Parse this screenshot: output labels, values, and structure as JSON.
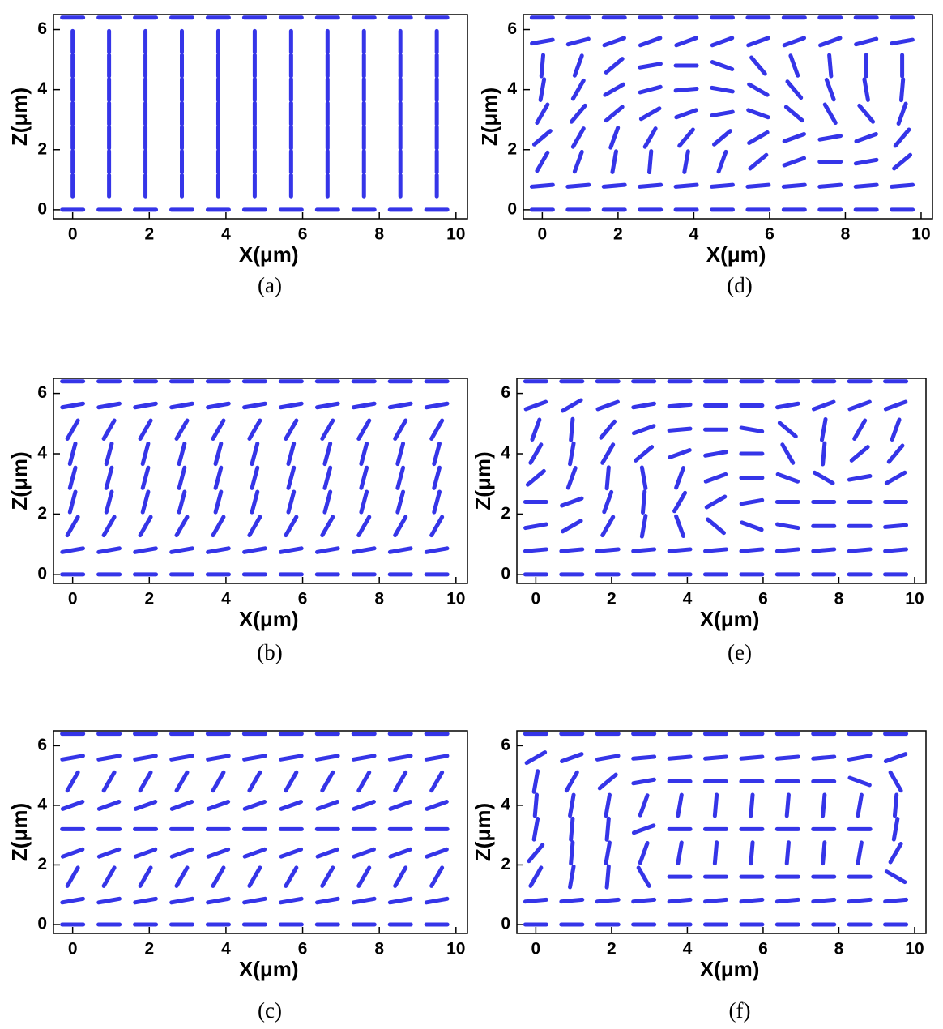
{
  "chart_data": [
    {
      "type": "director",
      "caption": "(a)",
      "xlabel": "X(μm)",
      "ylabel": "Z(μm)",
      "color": "#3535e8",
      "xlim": [
        -0.5,
        10.3
      ],
      "ylim": [
        -0.3,
        6.5
      ],
      "xticks": [
        0,
        2,
        4,
        6,
        8,
        10
      ],
      "yticks": [
        0,
        2,
        4,
        6
      ],
      "x": [
        0,
        0.95,
        1.9,
        2.85,
        3.8,
        4.75,
        5.7,
        6.65,
        7.6,
        8.55,
        9.5
      ],
      "z": [
        0,
        0.8,
        1.6,
        2.4,
        3.2,
        4.0,
        4.8,
        5.6,
        6.4
      ],
      "angles": [
        [
          0,
          0,
          0,
          0,
          0,
          0,
          0,
          0,
          0,
          0,
          0
        ],
        [
          90,
          90,
          90,
          90,
          90,
          90,
          90,
          90,
          90,
          90,
          90
        ],
        [
          90,
          90,
          90,
          90,
          90,
          90,
          90,
          90,
          90,
          90,
          90
        ],
        [
          90,
          90,
          90,
          90,
          90,
          90,
          90,
          90,
          90,
          90,
          90
        ],
        [
          90,
          90,
          90,
          90,
          90,
          90,
          90,
          90,
          90,
          90,
          90
        ],
        [
          90,
          90,
          90,
          90,
          90,
          90,
          90,
          90,
          90,
          90,
          90
        ],
        [
          90,
          90,
          90,
          90,
          90,
          90,
          90,
          90,
          90,
          90,
          90
        ],
        [
          90,
          90,
          90,
          90,
          90,
          90,
          90,
          90,
          90,
          90,
          90
        ],
        [
          0,
          0,
          0,
          0,
          0,
          0,
          0,
          0,
          0,
          0,
          0
        ]
      ]
    },
    {
      "type": "director",
      "caption": "(b)",
      "xlabel": "X(μm)",
      "ylabel": "Z(μm)",
      "color": "#3535e8",
      "xlim": [
        -0.5,
        10.3
      ],
      "ylim": [
        -0.3,
        6.5
      ],
      "xticks": [
        0,
        2,
        4,
        6,
        8,
        10
      ],
      "yticks": [
        0,
        2,
        4,
        6
      ],
      "x": [
        0,
        0.95,
        1.9,
        2.85,
        3.8,
        4.75,
        5.7,
        6.65,
        7.6,
        8.55,
        9.5
      ],
      "z": [
        0,
        0.8,
        1.6,
        2.4,
        3.2,
        4.0,
        4.8,
        5.6,
        6.4
      ],
      "angles": [
        [
          0,
          0,
          0,
          0,
          0,
          0,
          0,
          0,
          0,
          0,
          0
        ],
        [
          10,
          10,
          10,
          10,
          10,
          10,
          10,
          10,
          10,
          10,
          10
        ],
        [
          60,
          60,
          60,
          60,
          60,
          60,
          60,
          60,
          60,
          60,
          60
        ],
        [
          75,
          75,
          75,
          75,
          75,
          75,
          75,
          75,
          75,
          75,
          75
        ],
        [
          75,
          75,
          75,
          75,
          75,
          75,
          75,
          75,
          75,
          75,
          75
        ],
        [
          75,
          75,
          75,
          75,
          75,
          75,
          75,
          75,
          75,
          75,
          75
        ],
        [
          60,
          60,
          60,
          60,
          60,
          60,
          60,
          60,
          60,
          60,
          60
        ],
        [
          10,
          10,
          10,
          10,
          10,
          10,
          10,
          10,
          10,
          10,
          10
        ],
        [
          0,
          0,
          0,
          0,
          0,
          0,
          0,
          0,
          0,
          0,
          0
        ]
      ]
    },
    {
      "type": "director",
      "caption": "(c)",
      "xlabel": "X(μm)",
      "ylabel": "Z(μm)",
      "color": "#3535e8",
      "xlim": [
        -0.5,
        10.3
      ],
      "ylim": [
        -0.3,
        6.5
      ],
      "xticks": [
        0,
        2,
        4,
        6,
        8,
        10
      ],
      "yticks": [
        0,
        2,
        4,
        6
      ],
      "x": [
        0,
        0.95,
        1.9,
        2.85,
        3.8,
        4.75,
        5.7,
        6.65,
        7.6,
        8.55,
        9.5
      ],
      "z": [
        0,
        0.8,
        1.6,
        2.4,
        3.2,
        4.0,
        4.8,
        5.6,
        6.4
      ],
      "angles": [
        [
          0,
          0,
          0,
          0,
          0,
          0,
          0,
          0,
          0,
          0,
          0
        ],
        [
          10,
          10,
          10,
          10,
          10,
          10,
          10,
          10,
          10,
          10,
          10
        ],
        [
          60,
          60,
          60,
          60,
          60,
          60,
          60,
          60,
          60,
          60,
          60
        ],
        [
          20,
          20,
          20,
          20,
          20,
          20,
          20,
          20,
          20,
          20,
          20
        ],
        [
          0,
          0,
          0,
          0,
          0,
          0,
          0,
          0,
          0,
          0,
          0
        ],
        [
          20,
          20,
          20,
          20,
          20,
          20,
          20,
          20,
          20,
          20,
          20
        ],
        [
          60,
          60,
          60,
          60,
          60,
          60,
          60,
          60,
          60,
          60,
          60
        ],
        [
          10,
          10,
          10,
          10,
          10,
          10,
          10,
          10,
          10,
          10,
          10
        ],
        [
          0,
          0,
          0,
          0,
          0,
          0,
          0,
          0,
          0,
          0,
          0
        ]
      ]
    },
    {
      "type": "director",
      "caption": "(d)",
      "xlabel": "X(μm)",
      "ylabel": "Z(μm)",
      "color": "#3535e8",
      "xlim": [
        -0.5,
        10.3
      ],
      "ylim": [
        -0.3,
        6.5
      ],
      "xticks": [
        0,
        2,
        4,
        6,
        8,
        10
      ],
      "yticks": [
        0,
        2,
        4,
        6
      ],
      "x": [
        0,
        0.95,
        1.9,
        2.85,
        3.8,
        4.75,
        5.7,
        6.65,
        7.6,
        8.55,
        9.5
      ],
      "z": [
        0,
        0.8,
        1.6,
        2.4,
        3.2,
        4.0,
        4.8,
        5.6,
        6.4
      ],
      "angles": [
        [
          0,
          0,
          0,
          0,
          0,
          0,
          0,
          0,
          0,
          0,
          0
        ],
        [
          5,
          5,
          5,
          5,
          5,
          5,
          5,
          5,
          5,
          5,
          5
        ],
        [
          60,
          70,
          80,
          85,
          80,
          70,
          40,
          20,
          0,
          10,
          40
        ],
        [
          40,
          60,
          70,
          60,
          50,
          40,
          30,
          20,
          10,
          20,
          50
        ],
        [
          60,
          50,
          40,
          30,
          20,
          10,
          -20,
          -40,
          -60,
          -50,
          70
        ],
        [
          80,
          60,
          30,
          15,
          5,
          -10,
          -30,
          -50,
          -70,
          -80,
          85
        ],
        [
          85,
          70,
          40,
          10,
          0,
          -20,
          -50,
          -70,
          -85,
          90,
          90
        ],
        [
          10,
          15,
          20,
          20,
          20,
          20,
          20,
          20,
          20,
          15,
          10
        ],
        [
          0,
          0,
          0,
          0,
          0,
          0,
          0,
          0,
          0,
          0,
          0
        ]
      ]
    },
    {
      "type": "director",
      "caption": "(e)",
      "xlabel": "X(μm)",
      "ylabel": "Z(μm)",
      "color": "#3535e8",
      "xlim": [
        -0.5,
        10.3
      ],
      "ylim": [
        -0.3,
        6.5
      ],
      "xticks": [
        0,
        2,
        4,
        6,
        8,
        10
      ],
      "yticks": [
        0,
        2,
        4,
        6
      ],
      "x": [
        0,
        0.95,
        1.9,
        2.85,
        3.8,
        4.75,
        5.7,
        6.65,
        7.6,
        8.55,
        9.5
      ],
      "z": [
        0,
        0.8,
        1.6,
        2.4,
        3.2,
        4.0,
        4.8,
        5.6,
        6.4
      ],
      "angles": [
        [
          0,
          0,
          0,
          0,
          0,
          0,
          0,
          0,
          0,
          0,
          0
        ],
        [
          5,
          5,
          5,
          5,
          5,
          5,
          5,
          5,
          5,
          5,
          5
        ],
        [
          10,
          30,
          60,
          80,
          -70,
          -40,
          -20,
          -10,
          0,
          0,
          5
        ],
        [
          0,
          20,
          70,
          85,
          60,
          30,
          10,
          0,
          0,
          0,
          0
        ],
        [
          40,
          70,
          85,
          -80,
          70,
          20,
          0,
          -20,
          -30,
          10,
          30
        ],
        [
          60,
          80,
          60,
          40,
          20,
          10,
          0,
          -60,
          85,
          40,
          50
        ],
        [
          70,
          85,
          50,
          20,
          5,
          0,
          -10,
          -40,
          80,
          60,
          70
        ],
        [
          20,
          30,
          20,
          10,
          5,
          0,
          0,
          10,
          20,
          20,
          20
        ],
        [
          0,
          0,
          0,
          0,
          0,
          0,
          0,
          0,
          0,
          0,
          0
        ]
      ]
    },
    {
      "type": "director",
      "caption": "(f)",
      "xlabel": "X(μm)",
      "ylabel": "Z(μm)",
      "color": "#3535e8",
      "xlim": [
        -0.5,
        10.3
      ],
      "ylim": [
        -0.3,
        6.5
      ],
      "xticks": [
        0,
        2,
        4,
        6,
        8,
        10
      ],
      "yticks": [
        0,
        2,
        4,
        6
      ],
      "x": [
        0,
        0.95,
        1.9,
        2.85,
        3.8,
        4.75,
        5.7,
        6.65,
        7.6,
        8.55,
        9.5
      ],
      "z": [
        0,
        0.8,
        1.6,
        2.4,
        3.2,
        4.0,
        4.8,
        5.6,
        6.4
      ],
      "angles": [
        [
          0,
          0,
          0,
          0,
          0,
          0,
          0,
          0,
          0,
          0,
          0
        ],
        [
          5,
          5,
          5,
          5,
          5,
          5,
          5,
          5,
          5,
          5,
          5
        ],
        [
          60,
          80,
          85,
          -60,
          0,
          0,
          0,
          0,
          0,
          0,
          -30
        ],
        [
          50,
          85,
          80,
          70,
          80,
          85,
          85,
          85,
          85,
          80,
          60
        ],
        [
          80,
          85,
          85,
          20,
          0,
          0,
          0,
          0,
          0,
          0,
          80
        ],
        [
          85,
          80,
          80,
          70,
          80,
          85,
          85,
          85,
          85,
          80,
          85
        ],
        [
          80,
          60,
          40,
          10,
          0,
          0,
          0,
          0,
          0,
          -20,
          -60
        ],
        [
          30,
          20,
          10,
          5,
          5,
          5,
          5,
          5,
          5,
          10,
          20
        ],
        [
          0,
          0,
          0,
          0,
          0,
          0,
          0,
          0,
          0,
          0,
          0
        ]
      ]
    }
  ]
}
